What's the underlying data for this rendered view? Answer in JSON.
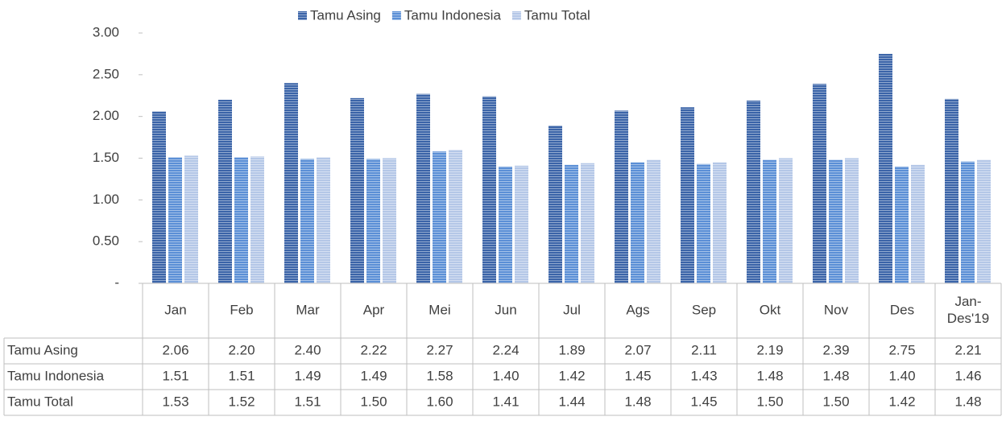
{
  "chart_data": {
    "type": "bar",
    "categories": [
      "Jan",
      "Feb",
      "Mar",
      "Apr",
      "Mei",
      "Jun",
      "Jul",
      "Ags",
      "Sep",
      "Okt",
      "Nov",
      "Des",
      "Jan-Des'19"
    ],
    "series": [
      {
        "name": "Tamu Asing",
        "color": "#3b64a8",
        "values": [
          2.06,
          2.2,
          2.4,
          2.22,
          2.27,
          2.24,
          1.89,
          2.07,
          2.11,
          2.19,
          2.39,
          2.75,
          2.21
        ],
        "value_labels": [
          "2.06",
          "2.20",
          "2.40",
          "2.22",
          "2.27",
          "2.24",
          "1.89",
          "2.07",
          "2.11",
          "2.19",
          "2.39",
          "2.75",
          "2.21"
        ]
      },
      {
        "name": "Tamu Indonesia",
        "color": "#5b8fd6",
        "values": [
          1.51,
          1.51,
          1.49,
          1.49,
          1.58,
          1.4,
          1.42,
          1.45,
          1.43,
          1.48,
          1.48,
          1.4,
          1.46
        ],
        "value_labels": [
          "1.51",
          "1.51",
          "1.49",
          "1.49",
          "1.58",
          "1.40",
          "1.42",
          "1.45",
          "1.43",
          "1.48",
          "1.48",
          "1.40",
          "1.46"
        ]
      },
      {
        "name": "Tamu Total",
        "color": "#b4c7e7",
        "values": [
          1.53,
          1.52,
          1.51,
          1.5,
          1.6,
          1.41,
          1.44,
          1.48,
          1.45,
          1.5,
          1.5,
          1.42,
          1.48
        ],
        "value_labels": [
          "1.53",
          "1.52",
          "1.51",
          "1.50",
          "1.60",
          "1.41",
          "1.44",
          "1.48",
          "1.45",
          "1.50",
          "1.50",
          "1.42",
          "1.48"
        ]
      }
    ],
    "ylim": [
      0,
      3
    ],
    "yticks": [
      {
        "value": 0,
        "label": "-"
      },
      {
        "value": 0.5,
        "label": "0.50"
      },
      {
        "value": 1,
        "label": "1.00"
      },
      {
        "value": 1.5,
        "label": "1.50"
      },
      {
        "value": 2,
        "label": "2.00"
      },
      {
        "value": 2.5,
        "label": "2.50"
      },
      {
        "value": 3,
        "label": "3.00"
      }
    ],
    "legend": "top",
    "data_table": true
  }
}
